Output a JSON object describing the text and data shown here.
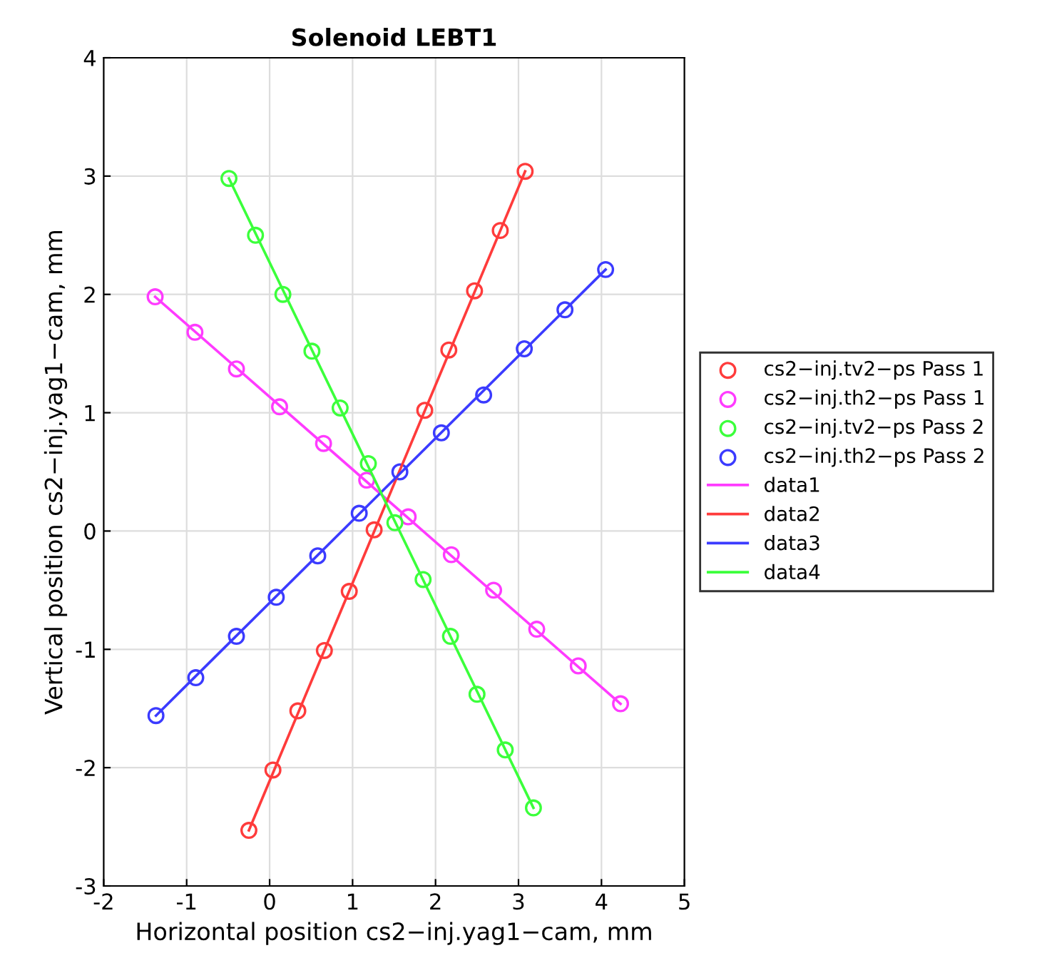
{
  "chart_data": {
    "type": "scatter",
    "title": "Solenoid LEBT1",
    "xlabel": "Horizontal position cs2−inj.yag1−cam, mm",
    "ylabel": "Vertical position cs2−inj.yag1−cam, mm",
    "xlim": [
      -2,
      5
    ],
    "ylim": [
      -3,
      4
    ],
    "xticks": [
      -2,
      -1,
      0,
      1,
      2,
      3,
      4,
      5
    ],
    "yticks": [
      -3,
      -2,
      -1,
      0,
      1,
      2,
      3,
      4
    ],
    "grid": true,
    "legend": "right",
    "series": [
      {
        "name": "cs2−inj.tv2−ps Pass 1",
        "marker": "circle",
        "color": "#ff3b3b",
        "x": [
          -0.25,
          0.04,
          0.34,
          0.66,
          0.96,
          1.26,
          1.57,
          1.87,
          2.16,
          2.47,
          2.78,
          3.08
        ],
        "values": [
          -2.53,
          -2.02,
          -1.52,
          -1.01,
          -0.51,
          0.01,
          null,
          1.02,
          1.53,
          2.03,
          2.54,
          3.04
        ]
      },
      {
        "name": "cs2−inj.th2−ps Pass 1",
        "marker": "circle",
        "color": "#ff3bff",
        "x": [
          -1.38,
          -0.9,
          -0.4,
          0.12,
          0.65,
          1.17,
          1.67,
          2.19,
          2.7,
          3.22,
          3.72,
          4.23
        ],
        "values": [
          1.98,
          1.68,
          1.37,
          1.05,
          0.74,
          0.43,
          0.12,
          -0.2,
          -0.5,
          -0.83,
          -1.14,
          -1.46
        ]
      },
      {
        "name": "cs2−inj.tv2−ps Pass 2",
        "marker": "circle",
        "color": "#3bff3b",
        "x": [
          -0.49,
          -0.17,
          0.16,
          0.51,
          0.85,
          1.19,
          1.51,
          1.85,
          2.18,
          2.5,
          2.84,
          3.18
        ],
        "values": [
          2.98,
          2.5,
          2.0,
          1.52,
          1.04,
          0.57,
          0.07,
          -0.41,
          -0.89,
          -1.38,
          -1.85,
          -2.34
        ]
      },
      {
        "name": "cs2−inj.th2−ps Pass 2",
        "marker": "circle",
        "color": "#3b3bff",
        "x": [
          -1.37,
          -0.89,
          -0.4,
          0.08,
          0.58,
          1.08,
          1.57,
          2.07,
          2.58,
          3.07,
          3.56,
          4.05
        ],
        "values": [
          -1.56,
          -1.24,
          -0.89,
          -0.56,
          -0.21,
          0.15,
          0.5,
          0.83,
          1.15,
          1.54,
          1.87,
          2.21
        ]
      },
      {
        "name": "data1",
        "type": "line",
        "color": "#ff3bff",
        "x": [
          -1.38,
          4.23
        ],
        "values": [
          1.98,
          -1.46
        ]
      },
      {
        "name": "data2",
        "type": "line",
        "color": "#ff3b3b",
        "x": [
          -0.25,
          3.08
        ],
        "values": [
          -2.53,
          3.04
        ]
      },
      {
        "name": "data3",
        "type": "line",
        "color": "#3b3bff",
        "x": [
          -1.37,
          4.05
        ],
        "values": [
          -1.56,
          2.21
        ]
      },
      {
        "name": "data4",
        "type": "line",
        "color": "#3bff3b",
        "x": [
          -0.49,
          3.18
        ],
        "values": [
          2.98,
          -2.34
        ]
      }
    ]
  }
}
